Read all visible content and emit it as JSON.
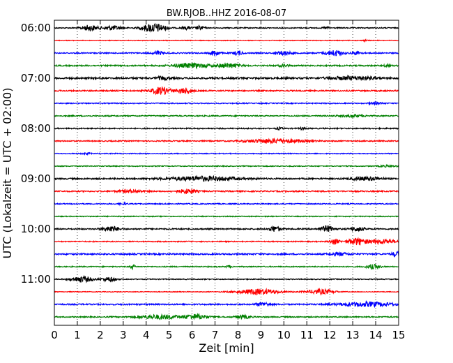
{
  "chart_data": {
    "type": "line",
    "title": "BW.RJOB..HHZ 2016-08-07",
    "xlabel": "Zeit  [min]",
    "ylabel": "UTC (Lokalzeit = UTC + 02:00)",
    "xlim": [
      0,
      15
    ],
    "xticks": [
      0,
      1,
      2,
      3,
      4,
      5,
      6,
      7,
      8,
      9,
      10,
      11,
      12,
      13,
      14,
      15
    ],
    "grid": "vertical dotted",
    "y_tick_labels": [
      "06:00",
      "07:00",
      "08:00",
      "09:00",
      "10:00",
      "11:00"
    ],
    "trace_interval_minutes": 15,
    "colors": [
      "#000000",
      "#ff0000",
      "#0000ff",
      "#008000"
    ],
    "series": [
      {
        "start": "06:00",
        "color_index": 0,
        "noise": 0.7,
        "events": [
          [
            1.55,
            4,
            0.35
          ],
          [
            2.55,
            3,
            0.4
          ],
          [
            4.15,
            4,
            0.4
          ],
          [
            4.55,
            4,
            0.4
          ],
          [
            5.75,
            2,
            0.2
          ],
          [
            6.35,
            3,
            0.2
          ],
          [
            11.85,
            1.5,
            0.15
          ]
        ]
      },
      {
        "start": "06:15",
        "color_index": 1,
        "noise": 0.5,
        "events": [
          [
            13.55,
            1,
            0.1
          ]
        ]
      },
      {
        "start": "06:30",
        "color_index": 2,
        "noise": 0.8,
        "events": [
          [
            4.5,
            3,
            0.2
          ],
          [
            7,
            4,
            0.2
          ],
          [
            8,
            3,
            0.2
          ],
          [
            10,
            3,
            0.3
          ],
          [
            12.2,
            4,
            0.4
          ],
          [
            13.2,
            2,
            0.2
          ]
        ]
      },
      {
        "start": "06:45",
        "color_index": 3,
        "noise": 0.9,
        "events": [
          [
            6,
            3,
            0.8
          ],
          [
            7.6,
            3,
            0.5
          ],
          [
            14.5,
            3,
            0.1
          ],
          [
            10,
            2,
            0.2
          ]
        ]
      },
      {
        "start": "07:00",
        "color_index": 0,
        "noise": 1.2,
        "events": [
          [
            13,
            2.5,
            0.9
          ],
          [
            4.7,
            2,
            0.3
          ]
        ]
      },
      {
        "start": "07:15",
        "color_index": 1,
        "noise": 0.9,
        "events": [
          [
            4.65,
            5,
            0.45
          ],
          [
            5.7,
            4,
            0.3
          ]
        ]
      },
      {
        "start": "07:30",
        "color_index": 2,
        "noise": 0.7,
        "events": [
          [
            14,
            1.2,
            0.3
          ]
        ]
      },
      {
        "start": "07:45",
        "color_index": 3,
        "noise": 0.8,
        "events": [
          [
            13,
            1.3,
            0.6
          ]
        ]
      },
      {
        "start": "08:00",
        "color_index": 0,
        "noise": 0.8,
        "events": [
          [
            9.8,
            2,
            0.1
          ],
          [
            10.8,
            1.5,
            0.1
          ]
        ]
      },
      {
        "start": "08:15",
        "color_index": 1,
        "noise": 0.8,
        "events": [
          [
            9.6,
            3,
            1.2
          ]
        ]
      },
      {
        "start": "08:30",
        "color_index": 2,
        "noise": 0.6,
        "events": [
          [
            1.4,
            1,
            0.2
          ]
        ]
      },
      {
        "start": "08:45",
        "color_index": 3,
        "noise": 0.6,
        "events": [
          [
            14.5,
            1,
            0.4
          ]
        ]
      },
      {
        "start": "09:00",
        "color_index": 0,
        "noise": 1,
        "events": [
          [
            6.5,
            3,
            1.5
          ],
          [
            13.6,
            2.5,
            0.6
          ]
        ]
      },
      {
        "start": "09:15",
        "color_index": 1,
        "noise": 0.9,
        "events": [
          [
            5.8,
            3,
            0.4
          ],
          [
            3.3,
            2,
            0.5
          ]
        ]
      },
      {
        "start": "09:30",
        "color_index": 2,
        "noise": 0.7,
        "events": [
          [
            3,
            1,
            0.2
          ]
        ]
      },
      {
        "start": "09:45",
        "color_index": 3,
        "noise": 0.6,
        "events": []
      },
      {
        "start": "10:00",
        "color_index": 0,
        "noise": 0.9,
        "events": [
          [
            2.45,
            4,
            0.35
          ],
          [
            9.6,
            4,
            0.25
          ],
          [
            11.9,
            4,
            0.3
          ],
          [
            13.2,
            3,
            0.3
          ]
        ]
      },
      {
        "start": "10:15",
        "color_index": 1,
        "noise": 0.7,
        "events": [
          [
            12.2,
            4,
            0.2
          ],
          [
            13.2,
            5,
            0.4
          ],
          [
            14.3,
            3,
            0.6
          ]
        ]
      },
      {
        "start": "10:30",
        "color_index": 2,
        "noise": 1,
        "events": [
          [
            14.9,
            3,
            0.2
          ],
          [
            12.4,
            2,
            0.4
          ]
        ]
      },
      {
        "start": "10:45",
        "color_index": 3,
        "noise": 0.7,
        "events": [
          [
            3.4,
            3,
            0.1
          ],
          [
            7.6,
            2,
            0.1
          ],
          [
            13.9,
            3,
            0.3
          ]
        ]
      },
      {
        "start": "11:00",
        "color_index": 0,
        "noise": 0.6,
        "events": [
          [
            1.2,
            4,
            0.5
          ],
          [
            2.4,
            3,
            0.3
          ]
        ]
      },
      {
        "start": "11:15",
        "color_index": 1,
        "noise": 0.5,
        "events": [
          [
            8.9,
            4,
            0.9
          ],
          [
            11.6,
            3.5,
            0.6
          ]
        ]
      },
      {
        "start": "11:30",
        "color_index": 2,
        "noise": 0.9,
        "events": [
          [
            13.6,
            3,
            1.2
          ],
          [
            9.1,
            2.5,
            0.3
          ]
        ]
      },
      {
        "start": "11:45",
        "color_index": 3,
        "noise": 0.8,
        "events": [
          [
            4.6,
            3,
            0.9
          ],
          [
            6.2,
            3.5,
            0.5
          ],
          [
            8.2,
            2.5,
            0.3
          ]
        ]
      }
    ]
  }
}
